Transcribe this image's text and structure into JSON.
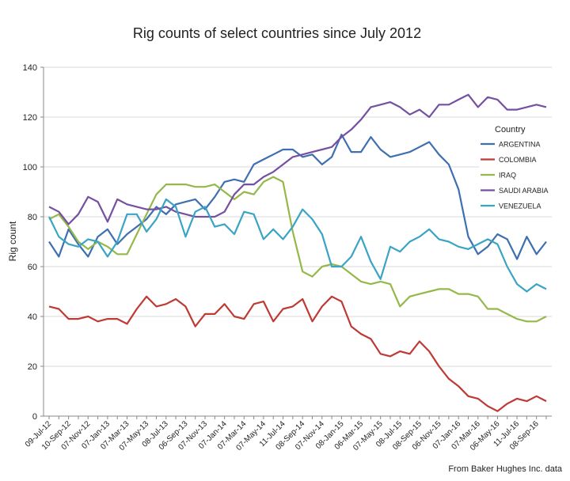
{
  "chart_data": {
    "type": "line",
    "title": "Rig counts of select countries since July 2012",
    "y_label": "Rig count",
    "source": "From Baker Hughes Inc. data",
    "legend_title": "Country",
    "legend": "right",
    "grid": true,
    "ylim": [
      0,
      140
    ],
    "yticks": [
      0,
      20,
      40,
      60,
      80,
      100,
      120,
      140
    ],
    "categories": [
      "09-Jul-12",
      null,
      "10-Sep-12",
      null,
      "07-Nov-12",
      null,
      "07-Jan-13",
      null,
      "07-Mar-13",
      null,
      "07-May-13",
      null,
      "08-Jul-13",
      null,
      "06-Sep-13",
      null,
      "07-Nov-13",
      null,
      "07-Jan-14",
      null,
      "07-Mar-14",
      null,
      "07-May-14",
      null,
      "11-Jul-14",
      null,
      "08-Sep-14",
      null,
      "07-Nov-14",
      null,
      "08-Jan-15",
      null,
      "06-Mar-15",
      null,
      "07-May-15",
      null,
      "08-Jul-15",
      null,
      "08-Sep-15",
      null,
      "06-Nov-15",
      null,
      "07-Jan-16",
      null,
      "07-Mar-16",
      null,
      "06-May-16",
      null,
      "11-Jul-16",
      null,
      "08-Sep-16",
      null
    ],
    "series": [
      {
        "name": "ARGENTINA",
        "color": "#3e6fb0",
        "values": [
          70,
          64,
          75,
          69,
          64,
          72,
          75,
          69,
          73,
          76,
          79,
          84,
          81,
          85,
          86,
          87,
          83,
          88,
          94,
          95,
          94,
          101,
          103,
          105,
          107,
          107,
          104,
          105,
          101,
          104,
          113,
          106,
          106,
          112,
          107,
          104,
          105,
          106,
          108,
          110,
          105,
          101,
          91,
          72,
          65,
          68,
          73,
          71,
          63,
          72,
          65,
          70
        ]
      },
      {
        "name": "COLOMBIA",
        "color": "#be3a34",
        "values": [
          44,
          43,
          39,
          39,
          40,
          38,
          39,
          39,
          37,
          43,
          48,
          44,
          45,
          47,
          44,
          36,
          41,
          41,
          45,
          40,
          39,
          45,
          46,
          38,
          43,
          44,
          47,
          38,
          44,
          48,
          46,
          36,
          33,
          31,
          25,
          24,
          26,
          25,
          30,
          26,
          20,
          15,
          12,
          8,
          7,
          4,
          2,
          5,
          7,
          6,
          8,
          6
        ]
      },
      {
        "name": "IRAQ",
        "color": "#95b84a",
        "values": [
          79,
          81,
          76,
          70,
          67,
          70,
          68,
          65,
          65,
          73,
          81,
          89,
          93,
          93,
          93,
          92,
          92,
          93,
          90,
          87,
          90,
          89,
          94,
          96,
          94,
          74,
          58,
          56,
          60,
          61,
          60,
          57,
          54,
          53,
          54,
          53,
          44,
          48,
          49,
          50,
          51,
          51,
          49,
          49,
          48,
          43,
          43,
          41,
          39,
          38,
          38,
          40
        ]
      },
      {
        "name": "SAUDI ARABIA",
        "color": "#7550a0",
        "values": [
          84,
          82,
          77,
          81,
          88,
          86,
          78,
          87,
          85,
          84,
          83,
          83,
          84,
          82,
          81,
          80,
          80,
          80,
          82,
          89,
          93,
          93,
          96,
          98,
          101,
          104,
          105,
          106,
          107,
          108,
          112,
          115,
          119,
          124,
          125,
          126,
          124,
          121,
          123,
          120,
          125,
          125,
          127,
          129,
          124,
          128,
          127,
          123,
          123,
          124,
          125,
          124
        ]
      },
      {
        "name": "VENEZUELA",
        "color": "#3aa4c4",
        "values": [
          80,
          72,
          69,
          68,
          71,
          70,
          64,
          70,
          81,
          81,
          74,
          79,
          87,
          84,
          72,
          82,
          84,
          76,
          77,
          73,
          82,
          81,
          71,
          75,
          71,
          76,
          83,
          79,
          73,
          60,
          60,
          64,
          72,
          62,
          55,
          68,
          66,
          70,
          72,
          75,
          71,
          70,
          68,
          67,
          69,
          71,
          69,
          60,
          53,
          50,
          53,
          51
        ]
      }
    ]
  }
}
